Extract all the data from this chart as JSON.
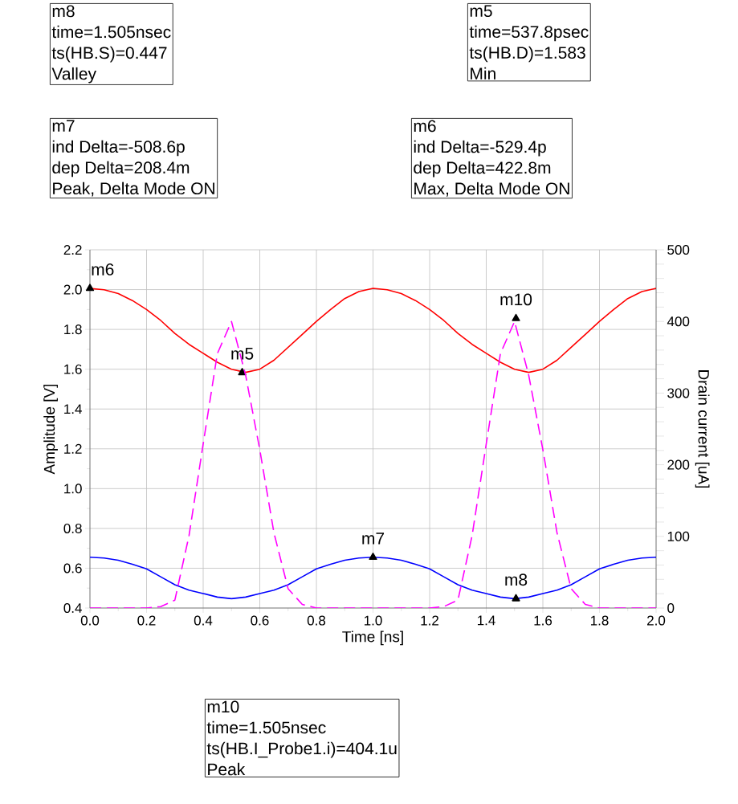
{
  "chart_data": {
    "type": "line",
    "xlabel": "Time [ns]",
    "ylabel": "Amplitude [V]",
    "y2label": "Drain current [uA]",
    "x": [
      0,
      0.05,
      0.1,
      0.15,
      0.2,
      0.25,
      0.3,
      0.35,
      0.4,
      0.45,
      0.5,
      0.55,
      0.6,
      0.65,
      0.7,
      0.75,
      0.8,
      0.85,
      0.9,
      0.95,
      1.0,
      1.05,
      1.1,
      1.15,
      1.2,
      1.25,
      1.3,
      1.35,
      1.4,
      1.45,
      1.5,
      1.55,
      1.6,
      1.65,
      1.7,
      1.75,
      1.8,
      1.85,
      1.9,
      1.95,
      2.0
    ],
    "series": [
      {
        "color": "#ff0000",
        "line_style": "solid",
        "values": [
          2.006,
          1.999,
          1.98,
          1.945,
          1.9,
          1.845,
          1.78,
          1.725,
          1.68,
          1.635,
          1.6,
          1.584,
          1.6,
          1.645,
          1.71,
          1.775,
          1.84,
          1.9,
          1.955,
          1.99,
          2.006,
          1.999,
          1.98,
          1.945,
          1.9,
          1.845,
          1.78,
          1.725,
          1.68,
          1.635,
          1.6,
          1.584,
          1.6,
          1.645,
          1.71,
          1.775,
          1.84,
          1.9,
          1.955,
          1.99,
          2.006
        ]
      },
      {
        "color": "#0000ff",
        "line_style": "solid",
        "values": [
          0.655,
          0.651,
          0.64,
          0.62,
          0.597,
          0.557,
          0.517,
          0.49,
          0.473,
          0.455,
          0.447,
          0.455,
          0.473,
          0.49,
          0.517,
          0.557,
          0.597,
          0.62,
          0.64,
          0.651,
          0.655,
          0.651,
          0.64,
          0.62,
          0.597,
          0.557,
          0.517,
          0.49,
          0.473,
          0.455,
          0.447,
          0.455,
          0.473,
          0.49,
          0.517,
          0.557,
          0.597,
          0.62,
          0.64,
          0.651,
          0.655
        ]
      },
      {
        "type": "scatter",
        "color": "#000000",
        "marker": "triangle",
        "x": [
          0,
          0.5378,
          1.0,
          1.505
        ],
        "values": [
          2.006,
          1.583,
          0.655,
          0.447
        ]
      },
      {
        "type": "scatter",
        "color": "#000000",
        "marker": "triangle",
        "axis": "y2",
        "x": [
          1.505
        ],
        "values": [
          404.1
        ]
      },
      {
        "color": "#ff00ff",
        "line_style": "dashed",
        "axis": "y2",
        "values": [
          0,
          0,
          0,
          0,
          0,
          2,
          11,
          101,
          229,
          355,
          400,
          325,
          221,
          105,
          27,
          5,
          0,
          0,
          0,
          0,
          0,
          0,
          0,
          0,
          0,
          2,
          11,
          101,
          229,
          355,
          400,
          325,
          221,
          105,
          27,
          5,
          0,
          0,
          0,
          0,
          0
        ]
      }
    ],
    "xlim": [
      0,
      2
    ],
    "ylim": [
      0.4,
      2.2
    ],
    "y2lim": [
      0,
      500
    ],
    "xticks": [
      {
        "value": 0,
        "label": "0.0"
      },
      {
        "value": 0.2,
        "label": "0.2"
      },
      {
        "value": 0.4,
        "label": "0.4"
      },
      {
        "value": 0.6,
        "label": "0.6"
      },
      {
        "value": 0.8,
        "label": "0.8"
      },
      {
        "value": 1.0,
        "label": "1.0"
      },
      {
        "value": 1.2,
        "label": "1.2"
      },
      {
        "value": 1.4,
        "label": "1.4"
      },
      {
        "value": 1.6,
        "label": "1.6"
      },
      {
        "value": 1.8,
        "label": "1.8"
      },
      {
        "value": 2.0,
        "label": "2.0"
      }
    ],
    "yticks": [
      {
        "value": 0.4,
        "label": "0.4"
      },
      {
        "value": 0.6,
        "label": "0.6"
      },
      {
        "value": 0.8,
        "label": "0.8"
      },
      {
        "value": 1.0,
        "label": "1.0"
      },
      {
        "value": 1.2,
        "label": "1.2"
      },
      {
        "value": 1.4,
        "label": "1.4"
      },
      {
        "value": 1.6,
        "label": "1.6"
      },
      {
        "value": 1.8,
        "label": "1.8"
      },
      {
        "value": 2.0,
        "label": "2.0"
      },
      {
        "value": 2.2,
        "label": "2.2"
      }
    ],
    "y2ticks": [
      0,
      100,
      200,
      300,
      400,
      500
    ],
    "grid": true,
    "marker": "none",
    "annotations": [
      "m8",
      "time=1.505nsec",
      "ts(HB.S)=0.447",
      "Valley",
      "m5",
      "time=537.8psec",
      "ts(HB.D)=1.583",
      "Min",
      "m7",
      "ind Delta=-508.6p",
      "dep Delta=208.4m",
      "Peak, Delta Mode ON",
      "m6",
      "ind Delta=-529.4p",
      "dep Delta=422.8m",
      "Max, Delta Mode ON",
      "m10",
      "time=1.505nsec",
      "ts(HB.I_Probe1.i)=404.1u",
      "Peak",
      {
        "text": "m6",
        "x": 0,
        "y": 2.006
      },
      {
        "text": "m5",
        "x": 0.5378,
        "y": 1.583
      },
      {
        "text": "m7",
        "x": 1.0,
        "y": 0.655
      },
      {
        "text": "m8",
        "x": 1.505,
        "y": 0.447
      },
      {
        "text": "m10",
        "x": 1.505,
        "y": 1.855
      }
    ]
  }
}
